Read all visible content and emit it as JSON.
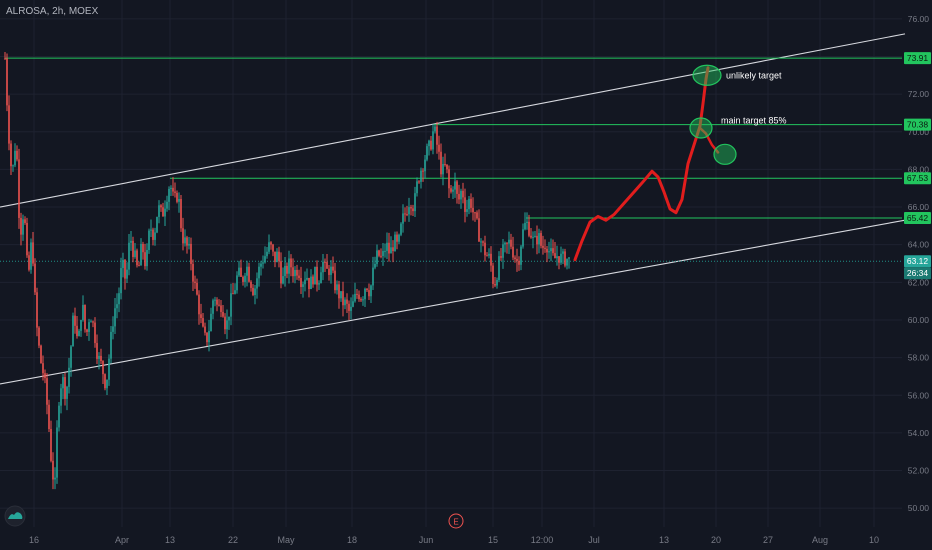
{
  "header": {
    "symbol": "ALROSA",
    "interval": "2h",
    "exchange": "MOEX"
  },
  "colors": {
    "background": "#131722",
    "grid": "#1e2230",
    "bull": "#26a69a",
    "bear": "#ef5350",
    "level": "#22c55e",
    "channel": "#d7d9df",
    "projection": "#e11d1d",
    "axis_text": "#787b86",
    "badge_price": "#26a69a"
  },
  "chart_data": {
    "type": "candlestick",
    "ylim": [
      49.0,
      77.0
    ],
    "xlim": [
      0,
      932
    ],
    "y_ticks": [
      50,
      52,
      54,
      56,
      58,
      60,
      62,
      64,
      66,
      68,
      70,
      72,
      74,
      76
    ],
    "y_tick_labels": [
      "50.00",
      "52.00",
      "54.00",
      "56.00",
      "58.00",
      "60.00",
      "62.00",
      "64.00",
      "66.00",
      "68.00",
      "70.00",
      "72.00",
      "74.00",
      "76.00"
    ],
    "x_ticks": [
      {
        "label": "16",
        "x": 34
      },
      {
        "label": "Apr",
        "x": 122
      },
      {
        "label": "13",
        "x": 170
      },
      {
        "label": "22",
        "x": 233
      },
      {
        "label": "May",
        "x": 286
      },
      {
        "label": "18",
        "x": 352
      },
      {
        "label": "Jun",
        "x": 426
      },
      {
        "label": "15",
        "x": 493
      },
      {
        "label": "12:00",
        "x": 542
      },
      {
        "label": "Jul",
        "x": 594
      },
      {
        "label": "13",
        "x": 664
      },
      {
        "label": "20",
        "x": 716
      },
      {
        "label": "27",
        "x": 768
      },
      {
        "label": "Aug",
        "x": 820
      },
      {
        "label": "10",
        "x": 874
      }
    ],
    "price_path": [
      [
        5,
        73.9
      ],
      [
        8,
        70.5
      ],
      [
        12,
        67.5
      ],
      [
        16,
        69.8
      ],
      [
        20,
        64.5
      ],
      [
        24,
        66.0
      ],
      [
        28,
        62.0
      ],
      [
        32,
        64.5
      ],
      [
        36,
        60.0
      ],
      [
        40,
        58.0
      ],
      [
        44,
        57.0
      ],
      [
        48,
        55.0
      ],
      [
        52,
        52.0
      ],
      [
        55,
        51.2
      ],
      [
        58,
        55.5
      ],
      [
        62,
        57.0
      ],
      [
        66,
        56.0
      ],
      [
        70,
        58.0
      ],
      [
        74,
        60.5
      ],
      [
        78,
        58.5
      ],
      [
        82,
        61.0
      ],
      [
        86,
        59.0
      ],
      [
        90,
        60.5
      ],
      [
        94,
        59.5
      ],
      [
        98,
        58.0
      ],
      [
        102,
        57.5
      ],
      [
        106,
        56.5
      ],
      [
        110,
        58.5
      ],
      [
        114,
        60.5
      ],
      [
        118,
        61.0
      ],
      [
        122,
        63.0
      ],
      [
        126,
        62.0
      ],
      [
        130,
        64.5
      ],
      [
        134,
        63.5
      ],
      [
        138,
        62.5
      ],
      [
        142,
        64.0
      ],
      [
        146,
        62.8
      ],
      [
        150,
        65.0
      ],
      [
        154,
        64.5
      ],
      [
        158,
        66.0
      ],
      [
        162,
        65.5
      ],
      [
        166,
        66.5
      ],
      [
        170,
        67.3
      ],
      [
        174,
        66.2
      ],
      [
        178,
        66.8
      ],
      [
        182,
        64.5
      ],
      [
        186,
        64.0
      ],
      [
        190,
        63.5
      ],
      [
        194,
        62.0
      ],
      [
        198,
        61.0
      ],
      [
        202,
        59.5
      ],
      [
        206,
        58.8
      ],
      [
        210,
        59.8
      ],
      [
        214,
        61.5
      ],
      [
        218,
        60.5
      ],
      [
        222,
        61.0
      ],
      [
        226,
        59.5
      ],
      [
        230,
        60.8
      ],
      [
        234,
        61.5
      ],
      [
        238,
        62.5
      ],
      [
        242,
        62.0
      ],
      [
        246,
        63.0
      ],
      [
        250,
        62.2
      ],
      [
        254,
        61.5
      ],
      [
        258,
        62.5
      ],
      [
        262,
        63.2
      ],
      [
        266,
        63.5
      ],
      [
        270,
        64.0
      ],
      [
        274,
        63.2
      ],
      [
        278,
        63.5
      ],
      [
        282,
        62.0
      ],
      [
        286,
        62.6
      ],
      [
        290,
        63.0
      ],
      [
        294,
        62.5
      ],
      [
        298,
        62.8
      ],
      [
        302,
        62.0
      ],
      [
        306,
        62.5
      ],
      [
        310,
        61.8
      ],
      [
        314,
        62.5
      ],
      [
        318,
        62.0
      ],
      [
        322,
        63.2
      ],
      [
        326,
        62.5
      ],
      [
        330,
        62.8
      ],
      [
        334,
        62.0
      ],
      [
        338,
        61.5
      ],
      [
        342,
        61.0
      ],
      [
        346,
        60.8
      ],
      [
        350,
        60.3
      ],
      [
        354,
        61.0
      ],
      [
        358,
        61.5
      ],
      [
        362,
        61.2
      ],
      [
        366,
        62.0
      ],
      [
        370,
        61.5
      ],
      [
        374,
        62.8
      ],
      [
        378,
        63.5
      ],
      [
        382,
        63.2
      ],
      [
        386,
        64.0
      ],
      [
        390,
        63.5
      ],
      [
        394,
        64.2
      ],
      [
        398,
        63.8
      ],
      [
        402,
        65.2
      ],
      [
        406,
        65.8
      ],
      [
        410,
        66.5
      ],
      [
        414,
        66.0
      ],
      [
        418,
        67.5
      ],
      [
        422,
        68.2
      ],
      [
        426,
        68.8
      ],
      [
        430,
        69.2
      ],
      [
        434,
        70.2
      ],
      [
        438,
        69.0
      ],
      [
        442,
        67.8
      ],
      [
        446,
        68.2
      ],
      [
        450,
        66.5
      ],
      [
        454,
        67.5
      ],
      [
        458,
        66.2
      ],
      [
        462,
        67.0
      ],
      [
        466,
        65.8
      ],
      [
        470,
        66.5
      ],
      [
        474,
        65.5
      ],
      [
        478,
        64.8
      ],
      [
        482,
        64.0
      ],
      [
        486,
        63.5
      ],
      [
        490,
        63.2
      ],
      [
        494,
        61.8
      ],
      [
        498,
        62.8
      ],
      [
        502,
        63.5
      ],
      [
        506,
        63.8
      ],
      [
        510,
        64.2
      ],
      [
        514,
        63.5
      ],
      [
        518,
        63.0
      ],
      [
        522,
        64.5
      ],
      [
        526,
        65.2
      ],
      [
        530,
        64.8
      ],
      [
        534,
        64.0
      ],
      [
        538,
        64.5
      ],
      [
        542,
        63.8
      ],
      [
        546,
        64.2
      ],
      [
        550,
        63.5
      ],
      [
        554,
        63.2
      ],
      [
        558,
        63.5
      ],
      [
        562,
        63.2
      ],
      [
        566,
        63.3
      ],
      [
        570,
        63.1
      ]
    ],
    "horizontal_levels": [
      {
        "price": 73.91,
        "label": "73.91",
        "x_start": 5
      },
      {
        "price": 70.38,
        "label": "70.38",
        "x_start": 434
      },
      {
        "price": 67.53,
        "label": "67.53",
        "x_start": 170
      },
      {
        "price": 65.42,
        "label": "65.42",
        "x_start": 526
      },
      {
        "price": 63.12,
        "label": "63.12",
        "x_start": 0
      }
    ],
    "channel_lines": [
      {
        "name": "upper",
        "from": [
          0,
          66.0
        ],
        "to": [
          905,
          75.2
        ]
      },
      {
        "name": "lower",
        "from": [
          0,
          56.6
        ],
        "to": [
          905,
          65.3
        ]
      }
    ],
    "projection_path": [
      [
        575,
        63.2
      ],
      [
        582,
        64.2
      ],
      [
        590,
        65.2
      ],
      [
        598,
        65.5
      ],
      [
        606,
        65.3
      ],
      [
        614,
        65.6
      ],
      [
        624,
        66.2
      ],
      [
        634,
        66.8
      ],
      [
        644,
        67.4
      ],
      [
        652,
        67.9
      ],
      [
        658,
        67.6
      ],
      [
        664,
        66.8
      ],
      [
        670,
        65.9
      ],
      [
        676,
        65.7
      ],
      [
        682,
        66.4
      ],
      [
        688,
        68.3
      ],
      [
        694,
        69.3
      ],
      [
        700,
        70.3
      ],
      [
        703,
        71.5
      ],
      [
        706,
        72.8
      ],
      [
        708,
        73.4
      ]
    ],
    "projection_branch": [
      [
        700,
        70.2
      ],
      [
        706,
        69.9
      ],
      [
        712,
        69.3
      ],
      [
        718,
        68.9
      ]
    ],
    "target_circles": [
      {
        "x": 707,
        "price": 73.0,
        "rx": 14,
        "ry": 10
      },
      {
        "x": 701,
        "price": 70.2,
        "rx": 11,
        "ry": 10
      },
      {
        "x": 725,
        "price": 68.8,
        "rx": 11,
        "ry": 10
      }
    ],
    "annotations": [
      {
        "text": "unlikely target",
        "x": 726,
        "price": 73.0
      },
      {
        "text": "main target 85%",
        "x": 721,
        "price": 70.6
      }
    ],
    "current_price": "63.12",
    "countdown": "26:34",
    "event_marker": "E",
    "event_marker_x": 456
  }
}
